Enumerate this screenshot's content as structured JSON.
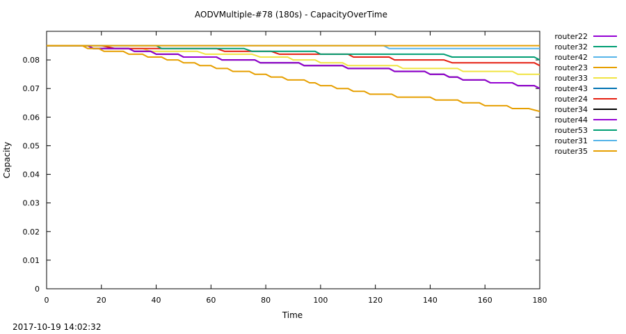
{
  "chart_data": {
    "type": "line",
    "title": "AODVMultiple-#78 (180s) - CapacityOverTime",
    "xlabel": "Time",
    "ylabel": "Capacity",
    "xlim": [
      0,
      180
    ],
    "ylim": [
      0,
      0.09
    ],
    "x_ticks": [
      0,
      20,
      40,
      60,
      80,
      100,
      120,
      140,
      160,
      180
    ],
    "x_tick_labels": [
      "0",
      "20",
      "40",
      "60",
      "80",
      "100",
      "120",
      "140",
      "160",
      "180"
    ],
    "y_ticks": [
      0,
      0.01,
      0.02,
      0.03,
      0.04,
      0.05,
      0.06,
      0.07,
      0.08
    ],
    "y_tick_labels": [
      "0",
      "0.01",
      "0.02",
      "0.03",
      "0.04",
      "0.05",
      "0.06",
      "0.07",
      "0.08"
    ],
    "grid": false,
    "legend_position": "right",
    "series": [
      {
        "name": "router22",
        "color": "#9400d3",
        "points": []
      },
      {
        "name": "router32",
        "color": "#009e73",
        "points": []
      },
      {
        "name": "router42",
        "color": "#56b4e9",
        "points": []
      },
      {
        "name": "router23",
        "color": "#e69f00",
        "points": []
      },
      {
        "name": "router33",
        "color": "#f0e442",
        "points": [
          [
            0,
            0.085
          ],
          [
            15,
            0.085
          ],
          [
            17,
            0.084
          ],
          [
            35,
            0.084
          ],
          [
            38,
            0.083
          ],
          [
            55,
            0.083
          ],
          [
            58,
            0.082
          ],
          [
            75,
            0.082
          ],
          [
            78,
            0.081
          ],
          [
            88,
            0.081
          ],
          [
            90,
            0.08
          ],
          [
            98,
            0.08
          ],
          [
            100,
            0.079
          ],
          [
            108,
            0.079
          ],
          [
            110,
            0.078
          ],
          [
            128,
            0.078
          ],
          [
            130,
            0.077
          ],
          [
            150,
            0.077
          ],
          [
            152,
            0.076
          ],
          [
            170,
            0.076
          ],
          [
            172,
            0.075
          ],
          [
            180,
            0.075
          ]
        ]
      },
      {
        "name": "router43",
        "color": "#0072b2",
        "points": []
      },
      {
        "name": "router24",
        "color": "#e51e10",
        "points": [
          [
            0,
            0.085
          ],
          [
            20,
            0.085
          ],
          [
            25,
            0.084
          ],
          [
            62,
            0.084
          ],
          [
            65,
            0.083
          ],
          [
            82,
            0.083
          ],
          [
            85,
            0.082
          ],
          [
            110,
            0.082
          ],
          [
            112,
            0.081
          ],
          [
            125,
            0.081
          ],
          [
            127,
            0.08
          ],
          [
            145,
            0.08
          ],
          [
            148,
            0.079
          ],
          [
            178,
            0.079
          ],
          [
            180,
            0.078
          ]
        ]
      },
      {
        "name": "router34",
        "color": "#000000",
        "points": [
          [
            0,
            0.085
          ],
          [
            15,
            0.085
          ],
          [
            17,
            0.084
          ],
          [
            30,
            0.084
          ],
          [
            32,
            0.083
          ],
          [
            38,
            0.083
          ],
          [
            40,
            0.082
          ],
          [
            48,
            0.082
          ],
          [
            50,
            0.081
          ],
          [
            62,
            0.081
          ],
          [
            64,
            0.08
          ],
          [
            76,
            0.08
          ],
          [
            78,
            0.079
          ],
          [
            92,
            0.079
          ],
          [
            94,
            0.078
          ],
          [
            108,
            0.078
          ],
          [
            110,
            0.077
          ],
          [
            125,
            0.077
          ],
          [
            127,
            0.076
          ],
          [
            138,
            0.076
          ],
          [
            140,
            0.075
          ],
          [
            145,
            0.075
          ],
          [
            147,
            0.074
          ],
          [
            150,
            0.074
          ],
          [
            152,
            0.073
          ],
          [
            160,
            0.073
          ],
          [
            162,
            0.072
          ],
          [
            170,
            0.072
          ],
          [
            172,
            0.071
          ],
          [
            178,
            0.071
          ],
          [
            180,
            0.07
          ]
        ]
      },
      {
        "name": "router44",
        "color": "#9400d3",
        "points": [
          [
            0,
            0.085
          ],
          [
            15,
            0.085
          ],
          [
            17,
            0.084
          ],
          [
            30,
            0.084
          ],
          [
            32,
            0.083
          ],
          [
            38,
            0.083
          ],
          [
            40,
            0.082
          ],
          [
            48,
            0.082
          ],
          [
            50,
            0.081
          ],
          [
            62,
            0.081
          ],
          [
            64,
            0.08
          ],
          [
            76,
            0.08
          ],
          [
            78,
            0.079
          ],
          [
            92,
            0.079
          ],
          [
            94,
            0.078
          ],
          [
            108,
            0.078
          ],
          [
            110,
            0.077
          ],
          [
            125,
            0.077
          ],
          [
            127,
            0.076
          ],
          [
            138,
            0.076
          ],
          [
            140,
            0.075
          ],
          [
            145,
            0.075
          ],
          [
            147,
            0.074
          ],
          [
            150,
            0.074
          ],
          [
            152,
            0.073
          ],
          [
            160,
            0.073
          ],
          [
            162,
            0.072
          ],
          [
            170,
            0.072
          ],
          [
            172,
            0.071
          ],
          [
            178,
            0.071
          ],
          [
            180,
            0.07
          ]
        ]
      },
      {
        "name": "router53",
        "color": "#009e73",
        "points": [
          [
            0,
            0.085
          ],
          [
            40,
            0.085
          ],
          [
            42,
            0.084
          ],
          [
            72,
            0.084
          ],
          [
            75,
            0.083
          ],
          [
            98,
            0.083
          ],
          [
            100,
            0.082
          ],
          [
            145,
            0.082
          ],
          [
            148,
            0.081
          ],
          [
            178,
            0.081
          ],
          [
            180,
            0.08
          ]
        ]
      },
      {
        "name": "router31",
        "color": "#56b4e9",
        "points": [
          [
            0,
            0.085
          ],
          [
            123,
            0.085
          ],
          [
            125,
            0.084
          ],
          [
            180,
            0.084
          ]
        ]
      },
      {
        "name": "router35",
        "color": "#e69f00",
        "points": [
          [
            0,
            0.085
          ],
          [
            180,
            0.085
          ]
        ]
      },
      {
        "name": "router35-lower",
        "color": "#e69f00",
        "legend": false,
        "points": [
          [
            0,
            0.085
          ],
          [
            13,
            0.085
          ],
          [
            15,
            0.084
          ],
          [
            19,
            0.084
          ],
          [
            21,
            0.083
          ],
          [
            28,
            0.083
          ],
          [
            30,
            0.082
          ],
          [
            35,
            0.082
          ],
          [
            37,
            0.081
          ],
          [
            42,
            0.081
          ],
          [
            44,
            0.08
          ],
          [
            48,
            0.08
          ],
          [
            50,
            0.079
          ],
          [
            54,
            0.079
          ],
          [
            56,
            0.078
          ],
          [
            60,
            0.078
          ],
          [
            62,
            0.077
          ],
          [
            66,
            0.077
          ],
          [
            68,
            0.076
          ],
          [
            74,
            0.076
          ],
          [
            76,
            0.075
          ],
          [
            80,
            0.075
          ],
          [
            82,
            0.074
          ],
          [
            86,
            0.074
          ],
          [
            88,
            0.073
          ],
          [
            94,
            0.073
          ],
          [
            96,
            0.072
          ],
          [
            98,
            0.072
          ],
          [
            100,
            0.071
          ],
          [
            104,
            0.071
          ],
          [
            106,
            0.07
          ],
          [
            110,
            0.07
          ],
          [
            112,
            0.069
          ],
          [
            116,
            0.069
          ],
          [
            118,
            0.068
          ],
          [
            126,
            0.068
          ],
          [
            128,
            0.067
          ],
          [
            140,
            0.067
          ],
          [
            142,
            0.066
          ],
          [
            150,
            0.066
          ],
          [
            152,
            0.065
          ],
          [
            158,
            0.065
          ],
          [
            160,
            0.064
          ],
          [
            168,
            0.064
          ],
          [
            170,
            0.063
          ],
          [
            176,
            0.063
          ],
          [
            178,
            0.0625
          ],
          [
            180,
            0.062
          ]
        ]
      }
    ]
  },
  "footer": {
    "timestamp": "2017-10-19 14:02:32"
  }
}
